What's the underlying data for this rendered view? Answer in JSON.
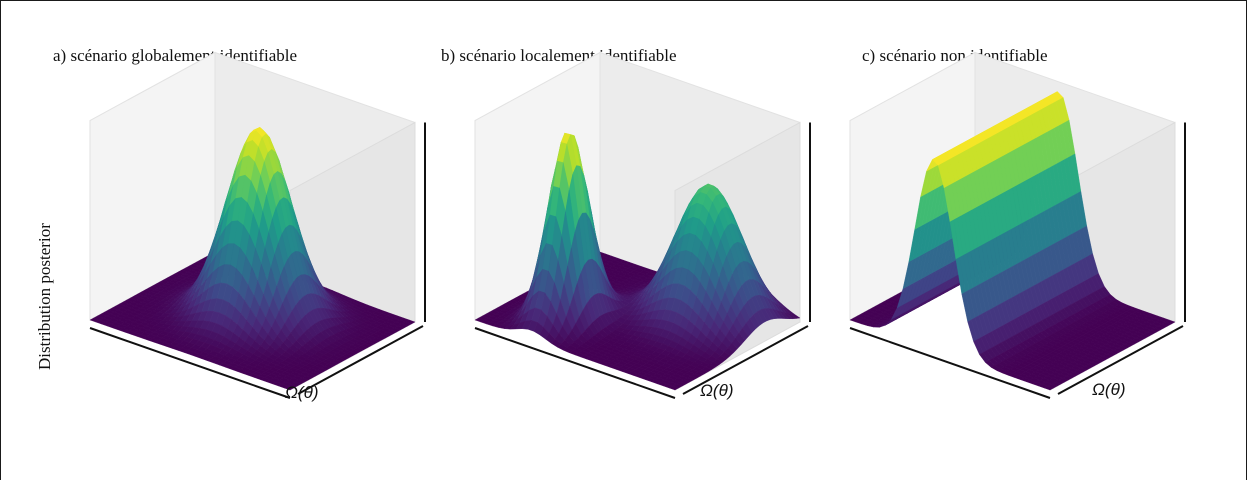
{
  "figure": {
    "ylabel": "Distribution posterior",
    "panels": [
      {
        "title": "a) scénario globalement identifiable",
        "axis_label": "Ω(θ)",
        "kind": "global"
      },
      {
        "title": "b) scénario localement identifiable",
        "axis_label": "Ω(θ)",
        "kind": "local"
      },
      {
        "title": "c) scénario non identifiable",
        "axis_label": "Ω(θ)",
        "kind": "ridge"
      }
    ]
  },
  "colormap": [
    "#440154",
    "#482878",
    "#3e4989",
    "#31688e",
    "#26828e",
    "#1f9e89",
    "#35b779",
    "#6ece58",
    "#b5de2b",
    "#fde725"
  ]
}
